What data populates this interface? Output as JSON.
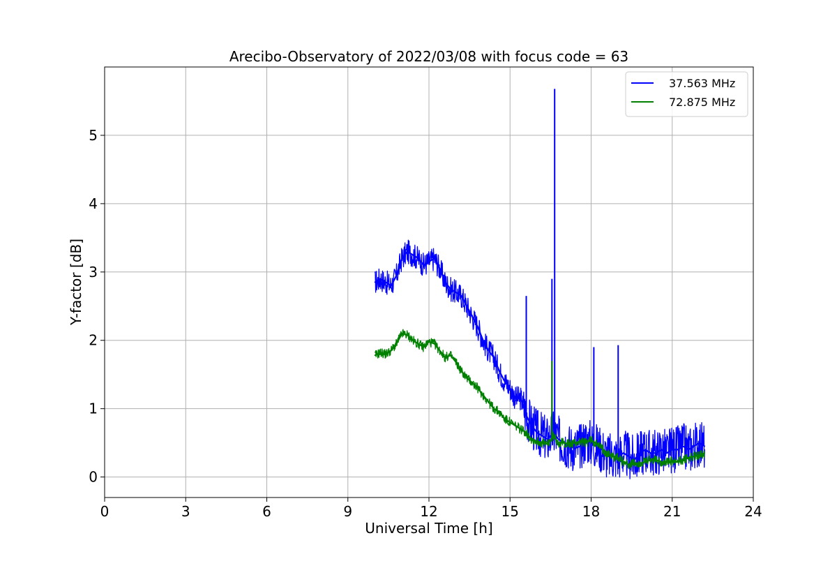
{
  "chart_data": {
    "type": "line",
    "title": "Arecibo-Observatory of 2022/03/08 with focus code = 63",
    "xlabel": "Universal Time [h]",
    "ylabel": "Y-factor [dB]",
    "xlim": [
      0,
      24
    ],
    "ylim": [
      -0.3,
      6.0
    ],
    "xticks": [
      0,
      3,
      6,
      9,
      12,
      15,
      18,
      21,
      24
    ],
    "yticks": [
      0,
      1,
      2,
      3,
      4,
      5
    ],
    "xtick_labels": [
      "0",
      "3",
      "6",
      "9",
      "12",
      "15",
      "18",
      "21",
      "24"
    ],
    "ytick_labels": [
      "0",
      "1",
      "2",
      "3",
      "4",
      "5"
    ],
    "grid": true,
    "legend": {
      "placement": "top-right"
    },
    "series": [
      {
        "name": "37.563 MHz",
        "color": "#0000ff",
        "x": [
          10.0,
          10.2,
          10.4,
          10.6,
          10.8,
          11.0,
          11.2,
          11.4,
          11.6,
          11.8,
          12.0,
          12.2,
          12.4,
          12.6,
          12.8,
          13.0,
          13.2,
          13.4,
          13.6,
          13.8,
          14.0,
          14.2,
          14.4,
          14.6,
          14.8,
          15.0,
          15.2,
          15.4,
          15.6,
          15.8,
          16.0,
          16.2,
          16.4,
          16.6,
          16.8,
          17.0,
          17.2,
          17.4,
          17.6,
          17.8,
          18.0,
          18.2,
          18.4,
          18.6,
          18.8,
          19.0,
          19.2,
          19.4,
          19.6,
          19.8,
          20.0,
          20.2,
          20.4,
          20.6,
          20.8,
          21.0,
          21.2,
          21.4,
          21.6,
          21.8,
          22.0,
          22.2
        ],
        "y": [
          2.85,
          2.9,
          2.85,
          2.8,
          2.95,
          3.2,
          3.3,
          3.25,
          3.2,
          3.1,
          3.15,
          3.2,
          3.05,
          2.85,
          2.75,
          2.7,
          2.65,
          2.5,
          2.35,
          2.2,
          2.0,
          1.85,
          1.75,
          1.55,
          1.4,
          1.3,
          1.15,
          1.15,
          0.9,
          0.75,
          0.65,
          0.6,
          0.55,
          0.65,
          0.55,
          0.5,
          0.45,
          0.42,
          0.45,
          0.55,
          0.5,
          0.45,
          0.4,
          0.3,
          0.3,
          0.3,
          0.35,
          0.3,
          0.25,
          0.35,
          0.4,
          0.35,
          0.35,
          0.4,
          0.35,
          0.4,
          0.4,
          0.45,
          0.4,
          0.45,
          0.5,
          0.45
        ]
      },
      {
        "name": "72.875 MHz",
        "color": "#008000",
        "x": [
          10.0,
          10.2,
          10.4,
          10.6,
          10.8,
          11.0,
          11.2,
          11.4,
          11.6,
          11.8,
          12.0,
          12.2,
          12.4,
          12.6,
          12.8,
          13.0,
          13.2,
          13.4,
          13.6,
          13.8,
          14.0,
          14.2,
          14.4,
          14.6,
          14.8,
          15.0,
          15.2,
          15.4,
          15.6,
          15.8,
          16.0,
          16.2,
          16.4,
          16.6,
          16.8,
          17.0,
          17.2,
          17.4,
          17.6,
          17.8,
          18.0,
          18.2,
          18.4,
          18.6,
          18.8,
          19.0,
          19.2,
          19.4,
          19.6,
          19.8,
          20.0,
          20.2,
          20.4,
          20.6,
          20.8,
          21.0,
          21.2,
          21.4,
          21.6,
          21.8,
          22.0,
          22.2
        ],
        "y": [
          1.78,
          1.82,
          1.8,
          1.85,
          1.95,
          2.1,
          2.08,
          2.0,
          1.95,
          1.9,
          1.98,
          1.95,
          1.85,
          1.75,
          1.78,
          1.68,
          1.55,
          1.45,
          1.38,
          1.3,
          1.2,
          1.1,
          1.0,
          0.95,
          0.85,
          0.8,
          0.75,
          0.7,
          0.65,
          0.55,
          0.52,
          0.5,
          0.48,
          0.6,
          0.5,
          0.5,
          0.48,
          0.5,
          0.52,
          0.5,
          0.55,
          0.48,
          0.42,
          0.35,
          0.3,
          0.28,
          0.22,
          0.18,
          0.2,
          0.2,
          0.22,
          0.25,
          0.25,
          0.22,
          0.22,
          0.22,
          0.22,
          0.25,
          0.28,
          0.3,
          0.32,
          0.35
        ]
      }
    ],
    "annotations": [
      {
        "series": "37.563 MHz",
        "x": 15.6,
        "y": 2.65
      },
      {
        "series": "37.563 MHz",
        "x": 16.55,
        "y": 2.9
      },
      {
        "series": "37.563 MHz",
        "x": 16.65,
        "y": 5.68
      },
      {
        "series": "37.563 MHz",
        "x": 18.1,
        "y": 1.9
      },
      {
        "series": "37.563 MHz",
        "x": 19.0,
        "y": 1.93
      },
      {
        "series": "72.875 MHz",
        "x": 16.55,
        "y": 1.7
      }
    ]
  }
}
